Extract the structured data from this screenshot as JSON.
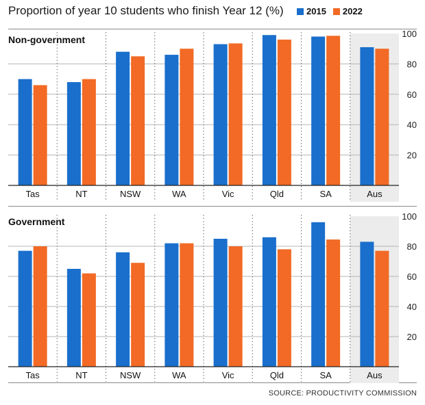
{
  "title": "Proportion of year 10 students who finish Year 12 (%)",
  "legend": [
    {
      "label": "2015",
      "color": "#1a6fcc"
    },
    {
      "label": "2022",
      "color": "#f26a25"
    }
  ],
  "source": "SOURCE: PRODUCTIVITY COMMISSION",
  "colors": {
    "highlight_bg": "#ececec",
    "grid": "#b5b5b5",
    "axis": "#222222"
  },
  "chart_data": [
    {
      "type": "bar",
      "title": "Non-government",
      "categories": [
        "Tas",
        "NT",
        "NSW",
        "WA",
        "Vic",
        "Qld",
        "SA",
        "Aus"
      ],
      "highlighted_category": "Aus",
      "series": [
        {
          "name": "2015",
          "values": [
            70,
            68,
            88,
            86,
            93,
            99,
            98,
            91
          ]
        },
        {
          "name": "2022",
          "values": [
            66,
            70,
            85,
            90,
            93.5,
            96,
            98.5,
            90
          ]
        }
      ],
      "yticks": [
        20,
        40,
        60,
        80,
        100
      ],
      "ylim": [
        0,
        100
      ],
      "grid": true,
      "y_axis_position": "right"
    },
    {
      "type": "bar",
      "title": "Government",
      "categories": [
        "Tas",
        "NT",
        "NSW",
        "WA",
        "Vic",
        "Qld",
        "SA",
        "Aus"
      ],
      "highlighted_category": "Aus",
      "series": [
        {
          "name": "2015",
          "values": [
            77,
            65,
            76,
            82,
            85,
            86,
            96,
            83
          ]
        },
        {
          "name": "2022",
          "values": [
            80,
            62,
            69,
            82,
            80,
            78,
            84.5,
            77
          ]
        }
      ],
      "yticks": [
        20,
        40,
        60,
        80,
        100
      ],
      "ylim": [
        0,
        100
      ],
      "grid": true,
      "y_axis_position": "right"
    }
  ]
}
